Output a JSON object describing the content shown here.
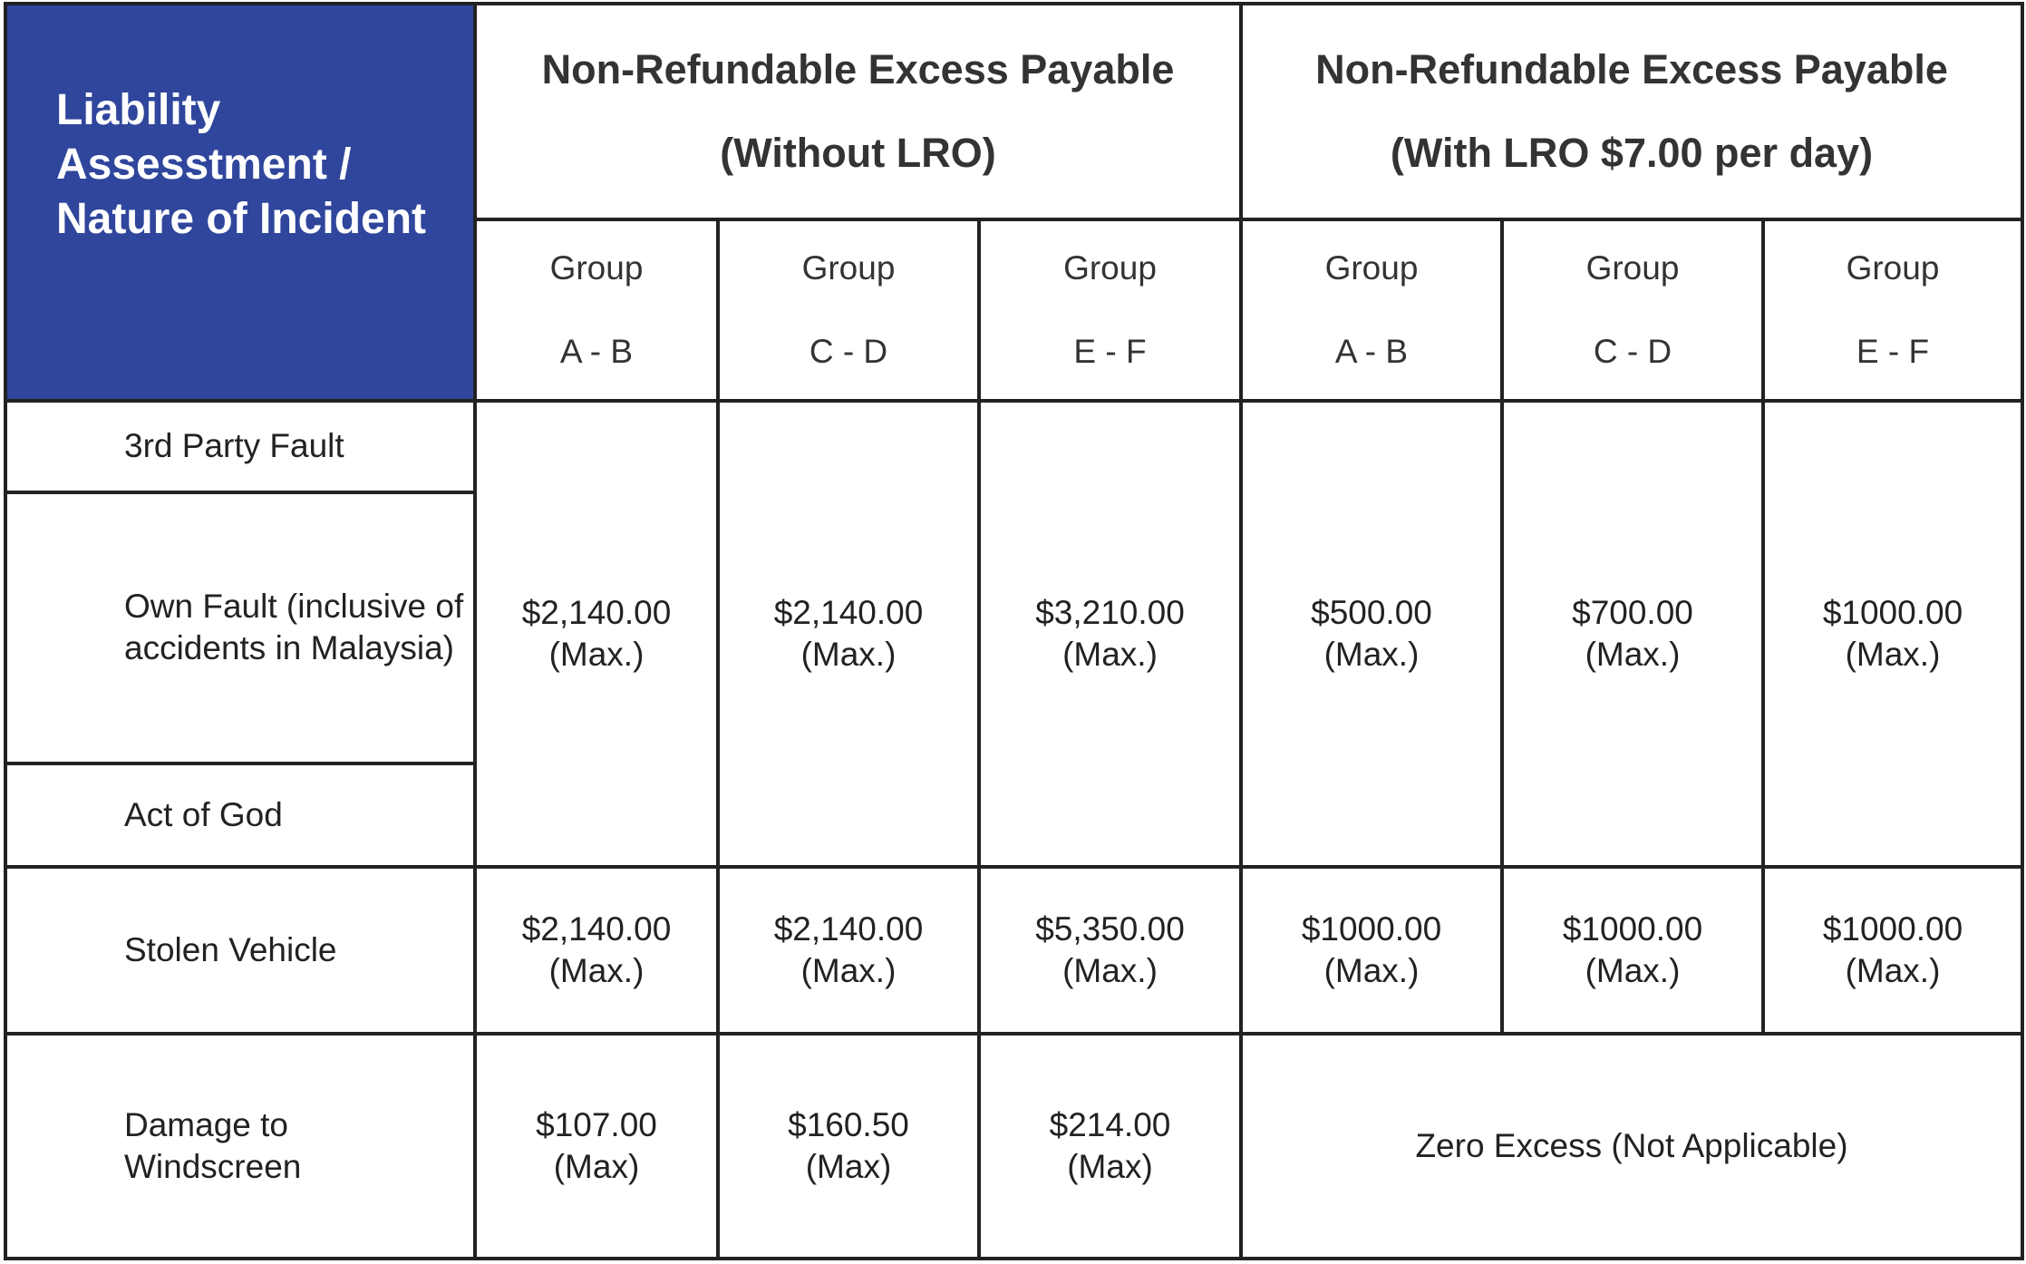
{
  "colors": {
    "header_bg": "#2f469c",
    "header_text": "#ffffff",
    "grid": "#222222"
  },
  "corner_header": "Liability Assesstment / Nature of Incident",
  "group_headers": [
    {
      "line1": "Non-Refundable Excess Payable",
      "line2": "(Without LRO)"
    },
    {
      "line1": "Non-Refundable Excess Payable",
      "line2": "(With LRO $7.00 per day)"
    }
  ],
  "subgroups": [
    {
      "line1": "Group",
      "line2": "A - B"
    },
    {
      "line1": "Group",
      "line2": "C - D"
    },
    {
      "line1": "Group",
      "line2": "E - F"
    },
    {
      "line1": "Group",
      "line2": "A - B"
    },
    {
      "line1": "Group",
      "line2": "C - D"
    },
    {
      "line1": "Group",
      "line2": "E - F"
    }
  ],
  "row_labels": {
    "third_party": "3rd Party Fault",
    "own_fault": "Own Fault (inclusive of accidents in Malaysia)",
    "act_of_god": "Act of God",
    "stolen": "Stolen Vehicle",
    "windscreen": "Damage to Windscreen"
  },
  "fault_values": [
    {
      "amount": "$2,140.00",
      "note": "(Max.)"
    },
    {
      "amount": "$2,140.00",
      "note": "(Max.)"
    },
    {
      "amount": "$3,210.00",
      "note": "(Max.)"
    },
    {
      "amount": "$500.00",
      "note": "(Max.)"
    },
    {
      "amount": "$700.00",
      "note": "(Max.)"
    },
    {
      "amount": "$1000.00",
      "note": "(Max.)"
    }
  ],
  "stolen_values": [
    {
      "amount": "$2,140.00",
      "note": "(Max.)"
    },
    {
      "amount": "$2,140.00",
      "note": "(Max.)"
    },
    {
      "amount": "$5,350.00",
      "note": "(Max.)"
    },
    {
      "amount": "$1000.00",
      "note": "(Max.)"
    },
    {
      "amount": "$1000.00",
      "note": "(Max.)"
    },
    {
      "amount": "$1000.00",
      "note": "(Max.)"
    }
  ],
  "windscreen_values": [
    {
      "amount": "$107.00",
      "note": "(Max)"
    },
    {
      "amount": "$160.50",
      "note": "(Max)"
    },
    {
      "amount": "$214.00",
      "note": "(Max)"
    }
  ],
  "windscreen_lro": "Zero Excess (Not Applicable)"
}
